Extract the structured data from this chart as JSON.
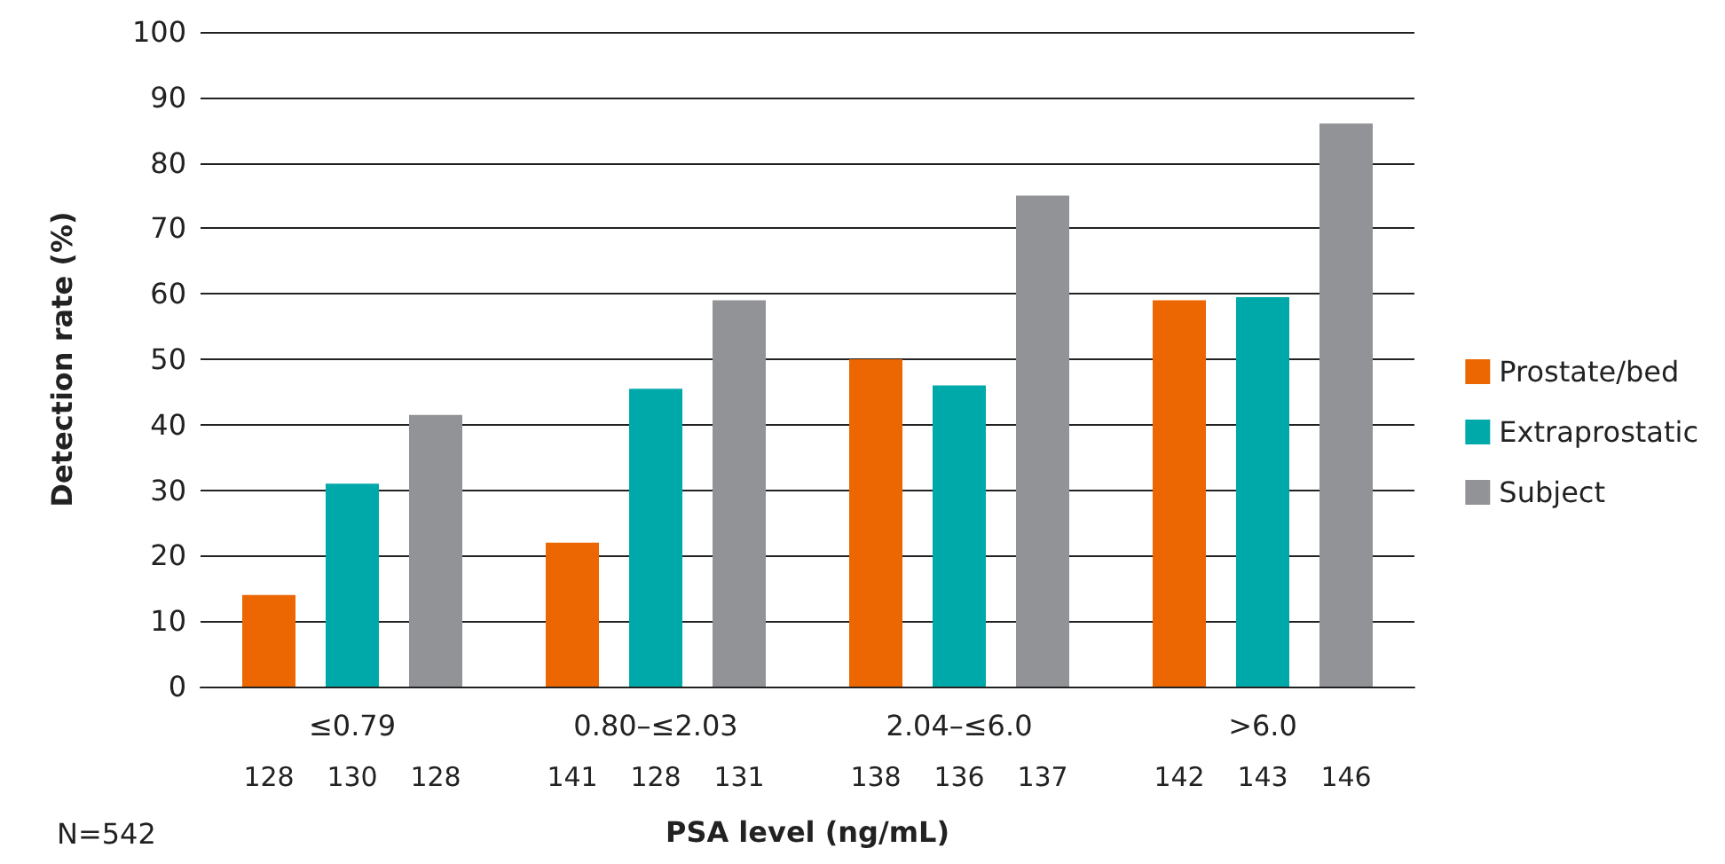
{
  "chart_data": {
    "type": "bar",
    "xlabel": "PSA level (ng/mL)",
    "ylabel": "Detection rate (%)",
    "categories": [
      "≤0.79",
      "0.80–≤2.03",
      "2.04–≤6.0",
      ">6.0"
    ],
    "series": [
      {
        "name": "Prostate/bed",
        "color": "#ec6602",
        "values": [
          14,
          22,
          50,
          59
        ]
      },
      {
        "name": "Extraprostatic",
        "color": "#00a9a9",
        "values": [
          31,
          45.5,
          46,
          59.5
        ]
      },
      {
        "name": "Subject",
        "color": "#929396",
        "values": [
          41.5,
          59,
          75,
          86
        ]
      }
    ],
    "ylim": [
      0,
      100
    ],
    "yticks": [
      0,
      10,
      20,
      30,
      40,
      50,
      60,
      70,
      80,
      90,
      100
    ],
    "grid": "y",
    "legend": "right",
    "annotations": [
      "128",
      "130",
      "128",
      "141",
      "128",
      "131",
      "138",
      "136",
      "137",
      "142",
      "143",
      "146",
      "N=542"
    ]
  }
}
